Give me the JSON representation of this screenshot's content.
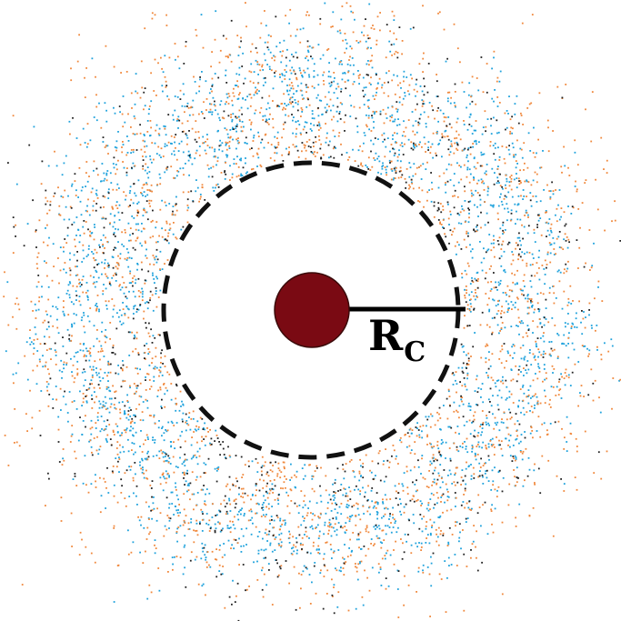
{
  "label": {
    "main": "R",
    "subscript": "C"
  },
  "colors": {
    "background": "#ffffff",
    "core_fill": "#7a0a13",
    "core_stroke": "#3a0a0a",
    "boundary": "#111111",
    "radius_line": "#000000",
    "label": "#000000",
    "particles_blue": "#1fa2dc",
    "particles_orange": "#f0883c",
    "particles_black": "#222222"
  },
  "particle_species": [
    "blue",
    "orange",
    "black"
  ],
  "core_icon": "filled-circle",
  "boundary_style": "dashed-circle"
}
